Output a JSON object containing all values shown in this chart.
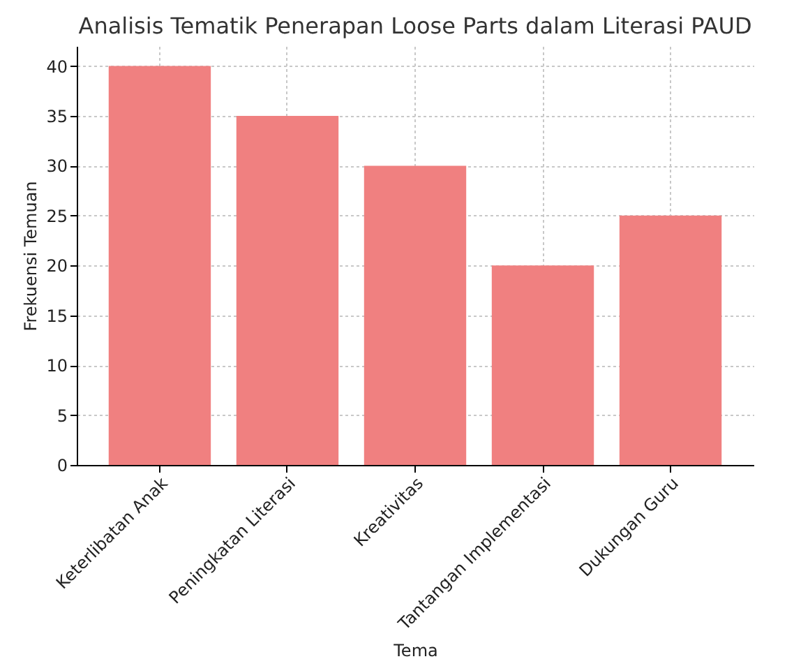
{
  "chart_data": {
    "type": "bar",
    "title": "Analisis Tematik Penerapan Loose Parts dalam Literasi PAUD",
    "xlabel": "Tema",
    "ylabel": "Frekuensi Temuan",
    "categories": [
      "Keterlibatan Anak",
      "Peningkatan Literasi",
      "Kreativitas",
      "Tantangan Implementasi",
      "Dukungan Guru"
    ],
    "values": [
      40,
      35,
      30,
      20,
      25
    ],
    "color": "#f08080",
    "ylim": [
      0,
      42
    ],
    "yticks": [
      0,
      5,
      10,
      15,
      20,
      25,
      30,
      35,
      40
    ],
    "grid": true
  }
}
